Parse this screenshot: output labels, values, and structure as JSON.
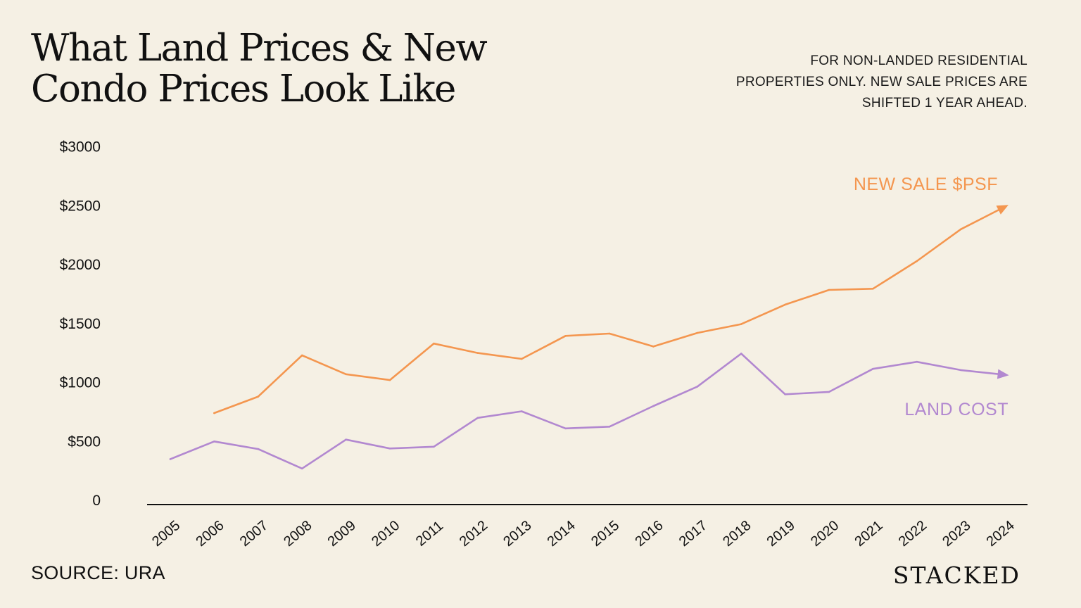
{
  "header": {
    "title_line1": "What Land Prices & New",
    "title_line2": "Condo Prices Look Like",
    "note_line1": "FOR NON-LANDED RESIDENTIAL",
    "note_line2": "PROPERTIES ONLY. NEW SALE PRICES ARE",
    "note_line3": "SHIFTED 1 YEAR AHEAD."
  },
  "footer": {
    "source": "SOURCE: URA",
    "brand": "STACKED"
  },
  "chart_data": {
    "type": "line",
    "title": "What Land Prices & New Condo Prices Look Like",
    "xlabel": "",
    "ylabel": "",
    "ylim": [
      0,
      3000
    ],
    "yticks": [
      0,
      500,
      1000,
      1500,
      2000,
      2500,
      3000
    ],
    "ytick_labels": [
      "0",
      "$500",
      "$1000",
      "$1500",
      "$2000",
      "$2500",
      "$3000"
    ],
    "categories": [
      "2005",
      "2006",
      "2007",
      "2008",
      "2009",
      "2010",
      "2011",
      "2012",
      "2013",
      "2014",
      "2015",
      "2016",
      "2017",
      "2018",
      "2019",
      "2020",
      "2021",
      "2022",
      "2023",
      "2024"
    ],
    "grid": false,
    "series": [
      {
        "name": "NEW SALE $PSF",
        "color": "#F4964F",
        "values": [
          null,
          740,
          880,
          1230,
          1070,
          1020,
          1330,
          1250,
          1200,
          1395,
          1415,
          1305,
          1420,
          1495,
          1660,
          1785,
          1795,
          2030,
          2300,
          2490
        ]
      },
      {
        "name": "LAND COST",
        "color": "#B288D0",
        "values": [
          350,
          500,
          435,
          270,
          515,
          440,
          455,
          700,
          755,
          610,
          625,
          800,
          965,
          1245,
          900,
          920,
          1115,
          1175,
          1105,
          1065
        ]
      }
    ]
  }
}
